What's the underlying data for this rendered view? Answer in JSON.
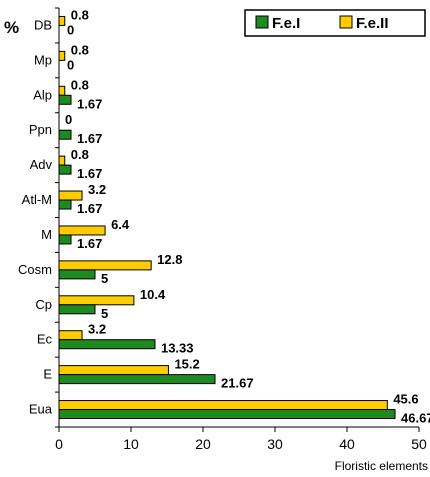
{
  "chart_data": {
    "type": "bar",
    "orientation": "horizontal",
    "title": "",
    "ylabel": "%",
    "xlabel": "Floristic elements",
    "categories": [
      "DB",
      "Mp",
      "Alp",
      "Ppn",
      "Adv",
      "Atl-M",
      "M",
      "Cosm",
      "Cp",
      "Ec",
      "E",
      "Eua"
    ],
    "series": [
      {
        "name": "F.e.I",
        "color": "#1f8a1f",
        "values": [
          0,
          0,
          1.67,
          1.67,
          1.67,
          1.67,
          1.67,
          5,
          5,
          13.33,
          21.67,
          46.67
        ]
      },
      {
        "name": "F.e.II",
        "color": "#ffcc00",
        "values": [
          0.8,
          0.8,
          0.8,
          0,
          0.8,
          3.2,
          6.4,
          12.8,
          10.4,
          3.2,
          15.2,
          45.6
        ]
      }
    ],
    "xlim": [
      0,
      50
    ],
    "xticks": [
      "0",
      "10",
      "20",
      "30",
      "40",
      "50"
    ],
    "grid": false,
    "legend": "top-right"
  }
}
